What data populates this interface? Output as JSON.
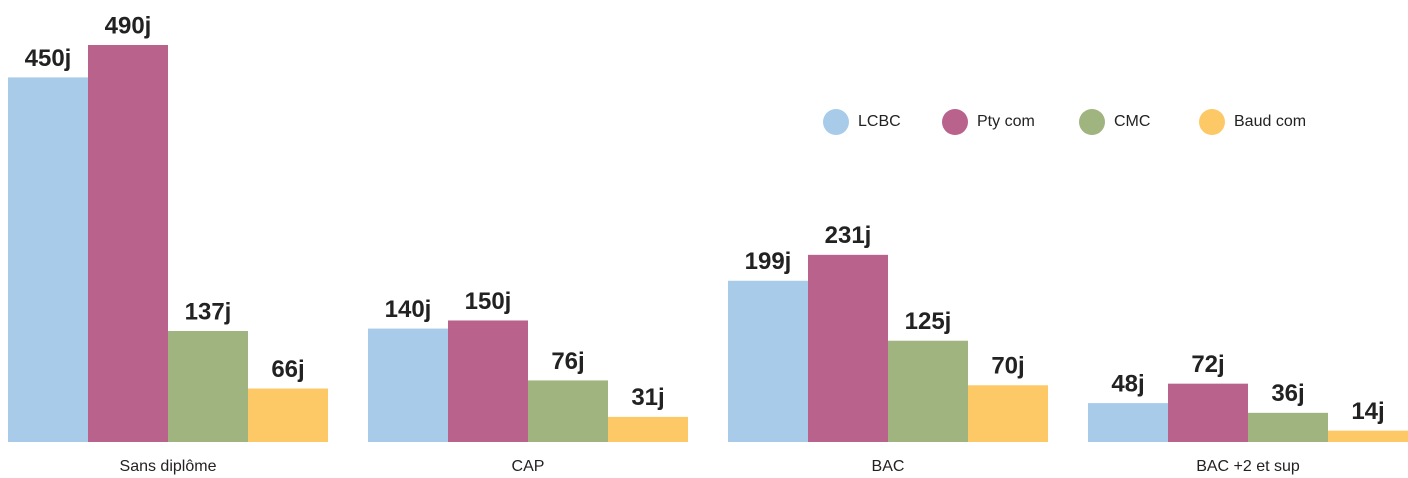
{
  "chart_data": {
    "type": "bar",
    "categories": [
      "Sans diplôme",
      "CAP",
      "BAC",
      "BAC +2 et sup"
    ],
    "series": [
      {
        "name": "LCBC",
        "color": "#a8cbea",
        "values": [
          450,
          140,
          199,
          48
        ],
        "value_labels": [
          "450j",
          "140j",
          "199j",
          "48j"
        ]
      },
      {
        "name": "Pty com",
        "color": "#b8628c",
        "values": [
          490,
          150,
          231,
          72
        ],
        "value_labels": [
          "490j",
          "150j",
          "231j",
          "72j"
        ]
      },
      {
        "name": "CMC",
        "color": "#9fb47f",
        "values": [
          137,
          76,
          125,
          36
        ],
        "value_labels": [
          "137j",
          "76j",
          "125j",
          "36j"
        ]
      },
      {
        "name": "Baud com",
        "color": "#fdc966",
        "values": [
          66,
          31,
          70,
          14
        ],
        "value_labels": [
          "66j",
          "31j",
          "70j",
          "14j"
        ]
      }
    ],
    "legend": "top-right"
  }
}
